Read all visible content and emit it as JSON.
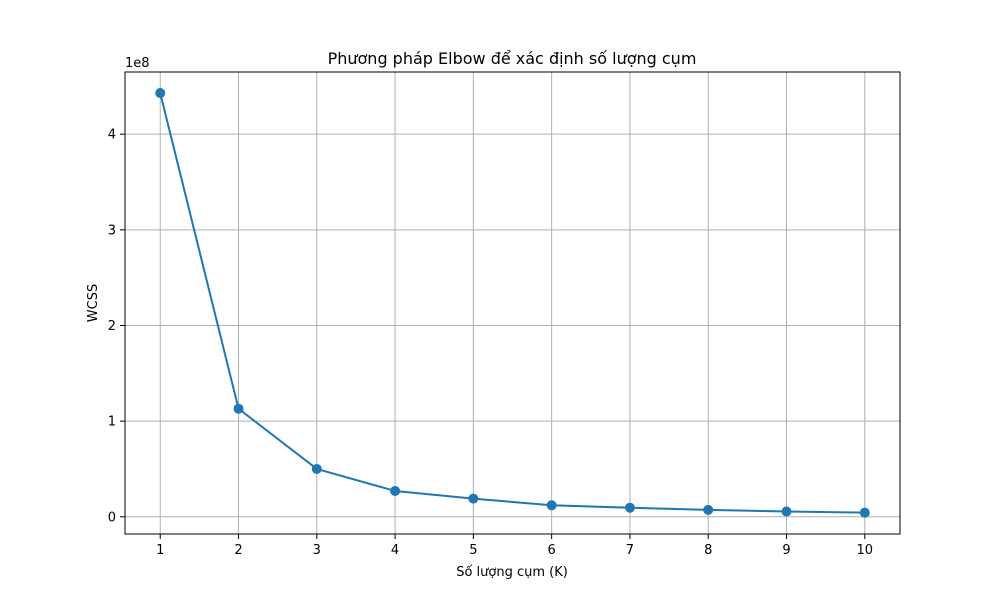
{
  "chart_data": {
    "type": "line",
    "title": "Phương pháp Elbow để xác định số lượng cụm",
    "xlabel": "Số lượng cụm (K)",
    "ylabel": "WCSS",
    "y_scale_label": "1e8",
    "x": [
      1,
      2,
      3,
      4,
      5,
      6,
      7,
      8,
      9,
      10
    ],
    "x_ticks": [
      "1",
      "2",
      "3",
      "4",
      "5",
      "6",
      "7",
      "8",
      "9",
      "10"
    ],
    "y_ticks": [
      "0",
      "1",
      "2",
      "3",
      "4"
    ],
    "xlim": [
      0.55,
      10.45
    ],
    "ylim": [
      -0.18,
      4.65
    ],
    "grid": true,
    "series": [
      {
        "values": [
          4.43,
          1.13,
          0.5,
          0.27,
          0.19,
          0.12,
          0.095,
          0.072,
          0.055,
          0.043
        ],
        "color": "#1f77b4",
        "marker": "circle"
      }
    ]
  }
}
